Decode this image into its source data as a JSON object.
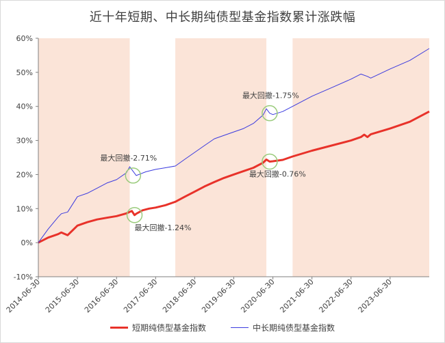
{
  "chart_data": {
    "type": "line",
    "title": "近十年短期、中长期纯债型基金指数累计涨跌幅",
    "xlabel": "",
    "ylabel": "",
    "ylim": [
      -10,
      60
    ],
    "yticks": [
      "-10%",
      "0%",
      "10%",
      "20%",
      "30%",
      "40%",
      "50%",
      "60%"
    ],
    "x_tick_labels": [
      "2014-06-30",
      "2015-06-30",
      "2016-06-30",
      "2017-06-30",
      "2018-06-30",
      "2019-06-30",
      "2020-06-30",
      "2021-06-30",
      "2022-06-30",
      "2023-06-30"
    ],
    "x_range": [
      "2014-06-30",
      "2024-06-30"
    ],
    "shaded_periods": [
      [
        "2014-06-30",
        "2016-10-31"
      ],
      [
        "2017-12-31",
        "2020-04-30"
      ],
      [
        "2020-12-31",
        "2024-06-30"
      ]
    ],
    "shade_color": "#fbe4d8",
    "grid": false,
    "legend_position": "bottom",
    "series": [
      {
        "name": "短期纯债型基金指数",
        "color": "#e8322a",
        "x": [
          "2014-06-30",
          "2014-09-30",
          "2014-12-31",
          "2015-01-31",
          "2015-03-31",
          "2015-06-30",
          "2015-09-30",
          "2015-12-31",
          "2016-03-31",
          "2016-06-30",
          "2016-09-30",
          "2016-11-20",
          "2016-12-15",
          "2016-12-31",
          "2017-02-28",
          "2017-04-30",
          "2017-06-30",
          "2017-09-30",
          "2017-12-31",
          "2018-03-31",
          "2018-06-30",
          "2018-09-30",
          "2018-12-31",
          "2019-03-31",
          "2019-06-30",
          "2019-09-30",
          "2019-12-31",
          "2020-03-31",
          "2020-04-30",
          "2020-05-31",
          "2020-06-30",
          "2020-09-30",
          "2020-12-31",
          "2021-06-30",
          "2021-12-31",
          "2022-06-30",
          "2022-09-30",
          "2022-10-31",
          "2022-11-30",
          "2022-12-31",
          "2023-06-30",
          "2023-12-31",
          "2024-06-30"
        ],
        "values": [
          0,
          1.5,
          2.5,
          3.0,
          2.2,
          5.0,
          6.0,
          6.8,
          7.3,
          7.8,
          8.6,
          9.3,
          8.1,
          8.5,
          9.5,
          10.0,
          10.3,
          11.0,
          12.0,
          13.5,
          15.0,
          16.5,
          17.8,
          19.0,
          20.0,
          21.0,
          22.0,
          23.5,
          24.4,
          23.8,
          23.9,
          24.3,
          25.3,
          27.0,
          28.5,
          30.0,
          31.0,
          31.7,
          31.0,
          31.8,
          33.5,
          35.5,
          38.5
        ],
        "annotation": {
          "text": "最大回撤-1.24%",
          "x": "2016-12-15",
          "y": 8.1
        },
        "annotation2": {
          "text": "最大回撤-0.76%",
          "x": "2020-05-31",
          "y": 23.8
        }
      },
      {
        "name": "中长期纯债型基金指数",
        "color": "#3a3adf",
        "x": [
          "2014-06-30",
          "2014-09-30",
          "2014-12-31",
          "2015-01-31",
          "2015-03-31",
          "2015-06-30",
          "2015-09-30",
          "2015-12-31",
          "2016-03-31",
          "2016-06-30",
          "2016-09-30",
          "2016-10-31",
          "2016-11-30",
          "2016-12-31",
          "2017-03-31",
          "2017-06-30",
          "2017-09-30",
          "2017-12-31",
          "2018-03-31",
          "2018-06-30",
          "2018-09-30",
          "2018-12-31",
          "2019-03-31",
          "2019-06-30",
          "2019-09-30",
          "2019-12-31",
          "2020-03-31",
          "2020-04-30",
          "2020-05-31",
          "2020-06-30",
          "2020-09-30",
          "2020-12-31",
          "2021-06-30",
          "2021-12-31",
          "2022-06-30",
          "2022-09-30",
          "2022-11-30",
          "2022-12-31",
          "2023-06-30",
          "2023-12-31",
          "2024-06-30"
        ],
        "values": [
          0,
          4.0,
          7.5,
          8.5,
          9.0,
          13.5,
          14.5,
          16.0,
          17.5,
          18.5,
          20.5,
          22.3,
          21.0,
          19.7,
          20.8,
          21.5,
          22.0,
          22.5,
          24.5,
          26.5,
          28.5,
          30.5,
          31.5,
          32.5,
          33.5,
          35.0,
          37.5,
          39.3,
          38.0,
          37.6,
          38.5,
          40.0,
          43.0,
          45.5,
          48.0,
          49.5,
          48.8,
          48.3,
          51.0,
          53.5,
          57.0
        ],
        "annotation": {
          "text": "最大回撤-2.71%",
          "x": "2016-12-01",
          "y": 19.7
        },
        "annotation2": {
          "text": "最大回撤-1.75%",
          "x": "2020-05-31",
          "y": 38.0
        }
      }
    ]
  }
}
